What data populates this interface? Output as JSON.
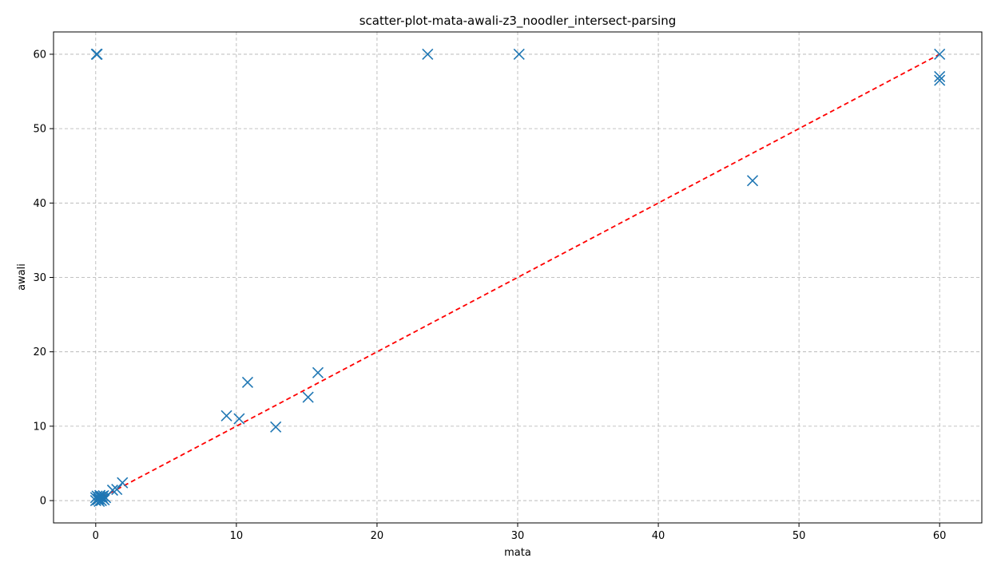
{
  "chart_data": {
    "type": "scatter",
    "title": "scatter-plot-mata-awali-z3_noodler_intersect-parsing",
    "xlabel": "mata",
    "ylabel": "awali",
    "xlim": [
      -3,
      63
    ],
    "ylim": [
      -3,
      63
    ],
    "xticks": [
      0,
      10,
      20,
      30,
      40,
      50,
      60
    ],
    "yticks": [
      0,
      10,
      20,
      30,
      40,
      50,
      60
    ],
    "grid": true,
    "grid_style": "dashed",
    "marker": "x",
    "series": [
      {
        "color": "#1f77b4",
        "points": [
          [
            0.05,
            60
          ],
          [
            0.1,
            60
          ],
          [
            23.6,
            60
          ],
          [
            30.1,
            60
          ],
          [
            60,
            60
          ],
          [
            60,
            57
          ],
          [
            60,
            56.5
          ],
          [
            46.7,
            43
          ],
          [
            9.3,
            11.4
          ],
          [
            10.2,
            11
          ],
          [
            10.8,
            15.9
          ],
          [
            12.8,
            9.9
          ],
          [
            15.1,
            13.9
          ],
          [
            15.8,
            17.2
          ],
          [
            1.9,
            2.4
          ],
          [
            1.5,
            1.5
          ],
          [
            1.2,
            1.4
          ],
          [
            0.0,
            0.4
          ],
          [
            0.1,
            0.6
          ],
          [
            0.2,
            0.2
          ],
          [
            0.3,
            0.5
          ],
          [
            0.4,
            0.0
          ],
          [
            0.5,
            0.3
          ],
          [
            0.6,
            0.1
          ],
          [
            0.3,
            0.7
          ],
          [
            0.15,
            0.1
          ],
          [
            0.45,
            0.55
          ],
          [
            0.7,
            0.4
          ],
          [
            0.0,
            0.0
          ],
          [
            0.25,
            -0.1
          ],
          [
            0.55,
            0.65
          ]
        ]
      },
      {
        "type": "line",
        "color": "#ff0000",
        "style": "dashed",
        "points": [
          [
            0,
            0
          ],
          [
            60,
            60
          ]
        ]
      }
    ]
  }
}
